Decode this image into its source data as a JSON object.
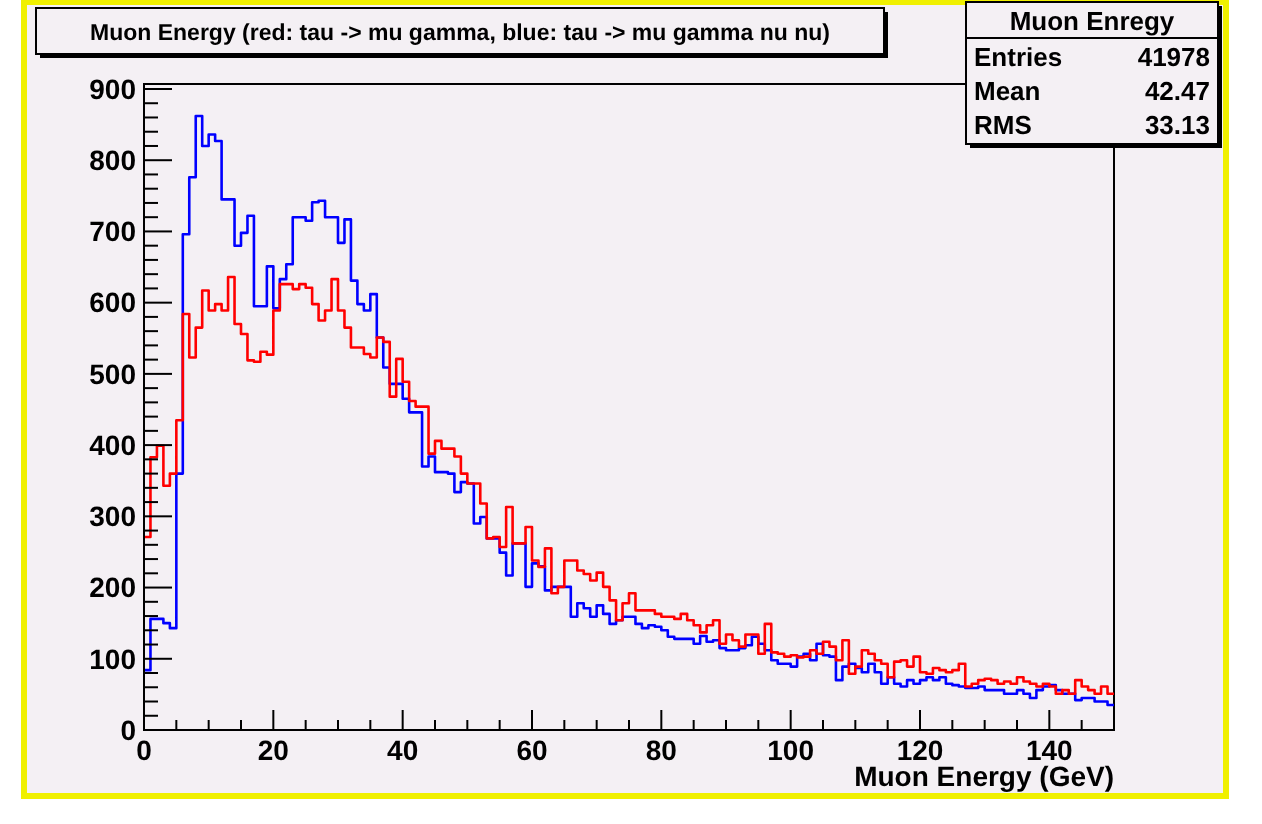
{
  "chart_data": {
    "type": "histogram",
    "title": "Muon Energy (red: tau -> mu gamma, blue: tau -> mu gamma nu nu)",
    "xlabel": "Muon Energy (GeV)",
    "annotations": [
      "Muon Enregy",
      "Entries",
      "41978",
      "Mean",
      "42.47",
      "RMS",
      "33.13"
    ],
    "bins": [
      0,
      1,
      2,
      3,
      4,
      5,
      6,
      7,
      8,
      9,
      10,
      11,
      12,
      13,
      14,
      15,
      16,
      17,
      18,
      19,
      20,
      21,
      22,
      23,
      24,
      25,
      26,
      27,
      28,
      29,
      30,
      31,
      32,
      33,
      34,
      35,
      36,
      37,
      38,
      39,
      40,
      41,
      42,
      43,
      44,
      45,
      46,
      47,
      48,
      49,
      50,
      51,
      52,
      53,
      54,
      55,
      56,
      57,
      58,
      59,
      60,
      61,
      62,
      63,
      64,
      65,
      66,
      67,
      68,
      69,
      70,
      71,
      72,
      73,
      74,
      75,
      76,
      77,
      78,
      79,
      80,
      81,
      82,
      83,
      84,
      85,
      86,
      87,
      88,
      89,
      90,
      91,
      92,
      93,
      94,
      95,
      96,
      97,
      98,
      99,
      100,
      101,
      102,
      103,
      104,
      105,
      106,
      107,
      108,
      109,
      110,
      111,
      112,
      113,
      114,
      115,
      116,
      117,
      118,
      119,
      120,
      121,
      122,
      123,
      124,
      125,
      126,
      127,
      128,
      129,
      130,
      131,
      132,
      133,
      134,
      135,
      136,
      137,
      138,
      139,
      140,
      141,
      142,
      143,
      144,
      145,
      146,
      147,
      148,
      149,
      150
    ],
    "series": [
      {
        "color": "#0000ff",
        "values": [
          84,
          156,
          156,
          150,
          143,
          360,
          696,
          776,
          862,
          820,
          836,
          827,
          745,
          745,
          680,
          698,
          722,
          595,
          595,
          651,
          592,
          633,
          654,
          720,
          720,
          715,
          741,
          743,
          720,
          720,
          684,
          717,
          631,
          598,
          589,
          612,
          551,
          509,
          486,
          486,
          465,
          446,
          446,
          370,
          384,
          362,
          362,
          360,
          334,
          348,
          346,
          290,
          299,
          269,
          269,
          249,
          217,
          262,
          262,
          201,
          234,
          230,
          196,
          201,
          201,
          201,
          159,
          178,
          171,
          159,
          175,
          163,
          149,
          154,
          159,
          159,
          149,
          143,
          147,
          145,
          140,
          131,
          128,
          128,
          128,
          121,
          132,
          124,
          126,
          115,
          112,
          112,
          115,
          119,
          131,
          121,
          112,
          98,
          93,
          93,
          89,
          103,
          107,
          98,
          121,
          105,
          103,
          70,
          89,
          93,
          87,
          81,
          93,
          81,
          65,
          74,
          65,
          61,
          70,
          65,
          70,
          74,
          70,
          74,
          65,
          63,
          61,
          59,
          59,
          61,
          56,
          56,
          56,
          51,
          51,
          56,
          51,
          45,
          56,
          61,
          63,
          56,
          51,
          51,
          42,
          45,
          45,
          40,
          40,
          35
        ]
      },
      {
        "color": "#ff0000",
        "values": [
          271,
          383,
          399,
          343,
          360,
          435,
          584,
          523,
          565,
          617,
          589,
          598,
          589,
          636,
          570,
          556,
          519,
          517,
          531,
          527,
          589,
          626,
          626,
          619,
          626,
          621,
          598,
          575,
          589,
          633,
          589,
          565,
          537,
          537,
          528,
          523,
          551,
          545,
          468,
          521,
          489,
          462,
          454,
          454,
          388,
          406,
          395,
          395,
          384,
          360,
          346,
          346,
          318,
          269,
          271,
          257,
          313,
          262,
          262,
          285,
          238,
          229,
          255,
          192,
          201,
          238,
          238,
          224,
          219,
          210,
          221,
          201,
          182,
          154,
          178,
          192,
          168,
          168,
          168,
          163,
          159,
          159,
          156,
          163,
          154,
          147,
          137,
          147,
          154,
          121,
          134,
          126,
          117,
          134,
          134,
          107,
          149,
          109,
          107,
          103,
          105,
          102,
          103,
          112,
          107,
          124,
          117,
          98,
          126,
          79,
          89,
          112,
          107,
          98,
          93,
          74,
          96,
          98,
          89,
          103,
          81,
          79,
          87,
          84,
          81,
          84,
          93,
          61,
          65,
          70,
          72,
          70,
          65,
          68,
          65,
          74,
          68,
          65,
          61,
          65,
          61,
          51,
          56,
          51,
          70,
          61,
          56,
          51,
          61,
          51
        ]
      }
    ],
    "xlim": [
      0,
      150
    ],
    "xticks": [
      0,
      {
        "value": 5,
        "label": null
      },
      {
        "value": 10,
        "label": null
      },
      {
        "value": 15,
        "label": null
      },
      20,
      {
        "value": 25,
        "label": null
      },
      {
        "value": 30,
        "label": null
      },
      {
        "value": 35,
        "label": null
      },
      40,
      {
        "value": 45,
        "label": null
      },
      {
        "value": 50,
        "label": null
      },
      {
        "value": 55,
        "label": null
      },
      60,
      {
        "value": 65,
        "label": null
      },
      {
        "value": 70,
        "label": null
      },
      {
        "value": 75,
        "label": null
      },
      80,
      {
        "value": 85,
        "label": null
      },
      {
        "value": 90,
        "label": null
      },
      {
        "value": 95,
        "label": null
      },
      100,
      {
        "value": 105,
        "label": null
      },
      {
        "value": 110,
        "label": null
      },
      {
        "value": 115,
        "label": null
      },
      120,
      {
        "value": 125,
        "label": null
      },
      {
        "value": 130,
        "label": null
      },
      {
        "value": 135,
        "label": null
      },
      140,
      {
        "value": 145,
        "label": null
      }
    ],
    "ylim": [
      0,
      907
    ],
    "yticks": [
      0,
      {
        "value": 20,
        "label": null
      },
      {
        "value": 40,
        "label": null
      },
      {
        "value": 60,
        "label": null
      },
      {
        "value": 80,
        "label": null
      },
      100,
      {
        "value": 120,
        "label": null
      },
      {
        "value": 140,
        "label": null
      },
      {
        "value": 160,
        "label": null
      },
      {
        "value": 180,
        "label": null
      },
      200,
      {
        "value": 220,
        "label": null
      },
      {
        "value": 240,
        "label": null
      },
      {
        "value": 260,
        "label": null
      },
      {
        "value": 280,
        "label": null
      },
      300,
      {
        "value": 320,
        "label": null
      },
      {
        "value": 340,
        "label": null
      },
      {
        "value": 360,
        "label": null
      },
      {
        "value": 380,
        "label": null
      },
      400,
      {
        "value": 420,
        "label": null
      },
      {
        "value": 440,
        "label": null
      },
      {
        "value": 460,
        "label": null
      },
      {
        "value": 480,
        "label": null
      },
      500,
      {
        "value": 520,
        "label": null
      },
      {
        "value": 540,
        "label": null
      },
      {
        "value": 560,
        "label": null
      },
      {
        "value": 580,
        "label": null
      },
      600,
      {
        "value": 620,
        "label": null
      },
      {
        "value": 640,
        "label": null
      },
      {
        "value": 660,
        "label": null
      },
      {
        "value": 680,
        "label": null
      },
      700,
      {
        "value": 720,
        "label": null
      },
      {
        "value": 740,
        "label": null
      },
      {
        "value": 760,
        "label": null
      },
      {
        "value": 780,
        "label": null
      },
      800,
      {
        "value": 820,
        "label": null
      },
      {
        "value": 840,
        "label": null
      },
      {
        "value": 860,
        "label": null
      },
      {
        "value": 880,
        "label": null
      },
      900
    ]
  }
}
